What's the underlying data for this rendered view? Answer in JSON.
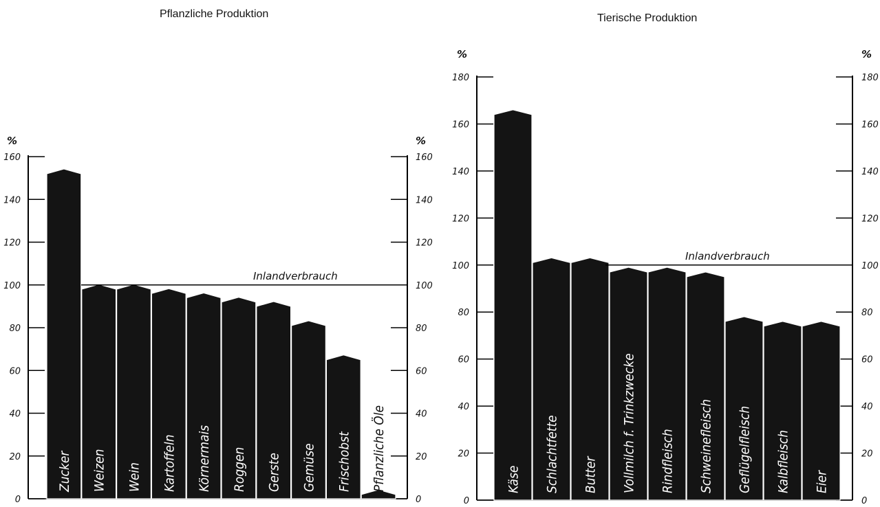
{
  "chart_data": [
    {
      "type": "bar",
      "title": "Pflanzliche Produktion",
      "ylabel": "%",
      "ylim": [
        0,
        160
      ],
      "yticks": [
        "0",
        "20",
        "40",
        "60",
        "80",
        "100",
        "120",
        "140",
        "160"
      ],
      "reference_line": {
        "label": "Inlandverbrauch",
        "value": 100
      },
      "categories": [
        "Zucker",
        "Weizen",
        "Wein",
        "Kartoffeln",
        "Körnermais",
        "Roggen",
        "Gerste",
        "Gemüse",
        "Frischobst",
        "Pflanzliche Öle"
      ],
      "values": [
        152,
        98,
        98,
        96,
        94,
        92,
        90,
        81,
        65,
        2
      ],
      "colors": {
        "bar": "#141414",
        "background": "#ffffff"
      }
    },
    {
      "type": "bar",
      "title": "Tierische Produktion",
      "ylabel": "%",
      "ylim": [
        0,
        180
      ],
      "yticks": [
        "0",
        "20",
        "40",
        "60",
        "80",
        "100",
        "120",
        "140",
        "160",
        "180"
      ],
      "reference_line": {
        "label": "Inlandverbrauch",
        "value": 100
      },
      "categories": [
        "Käse",
        "Schlachtfette",
        "Butter",
        "Vollmilch f. Trinkzwecke",
        "Rindfleisch",
        "Schweinefleisch",
        "Geflügelfleisch",
        "Kalbfleisch",
        "Eier"
      ],
      "values": [
        164,
        101,
        101,
        97,
        97,
        95,
        76,
        74,
        74
      ],
      "colors": {
        "bar": "#141414",
        "background": "#ffffff"
      }
    }
  ]
}
